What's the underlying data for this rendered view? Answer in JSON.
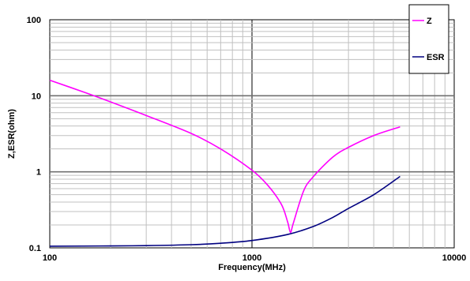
{
  "chart_data": {
    "type": "line",
    "xlabel": "Frequency(MHz)",
    "ylabel": "Z,ESR(ohm)",
    "xscale": "log",
    "yscale": "log",
    "xlim": [
      100,
      10000
    ],
    "ylim": [
      0.1,
      100
    ],
    "x_ticks": [
      100,
      1000,
      10000
    ],
    "x_tick_labels": [
      "100",
      "1000",
      "10000"
    ],
    "y_ticks": [
      0.1,
      1,
      10,
      100
    ],
    "y_tick_labels": [
      "0.1",
      "1",
      "10",
      "100"
    ],
    "grid": true,
    "legend_position": "top-right",
    "series": [
      {
        "name": "Z",
        "color": "#ff00ff",
        "x": [
          100,
          150,
          200,
          300,
          500,
          700,
          1000,
          1200,
          1400,
          1500,
          1550,
          1600,
          1800,
          2000,
          2500,
          3000,
          4000,
          5400
        ],
        "y": [
          16,
          11,
          8.3,
          5.5,
          3.2,
          2.0,
          1.05,
          0.66,
          0.37,
          0.22,
          0.16,
          0.21,
          0.56,
          0.85,
          1.55,
          2.1,
          3.0,
          3.9
        ]
      },
      {
        "name": "ESR",
        "color": "#000080",
        "x": [
          100,
          200,
          300,
          500,
          700,
          1000,
          1500,
          2000,
          2500,
          3000,
          4000,
          5400
        ],
        "y": [
          0.105,
          0.106,
          0.107,
          0.11,
          0.115,
          0.125,
          0.15,
          0.19,
          0.25,
          0.33,
          0.5,
          0.87
        ]
      }
    ]
  }
}
